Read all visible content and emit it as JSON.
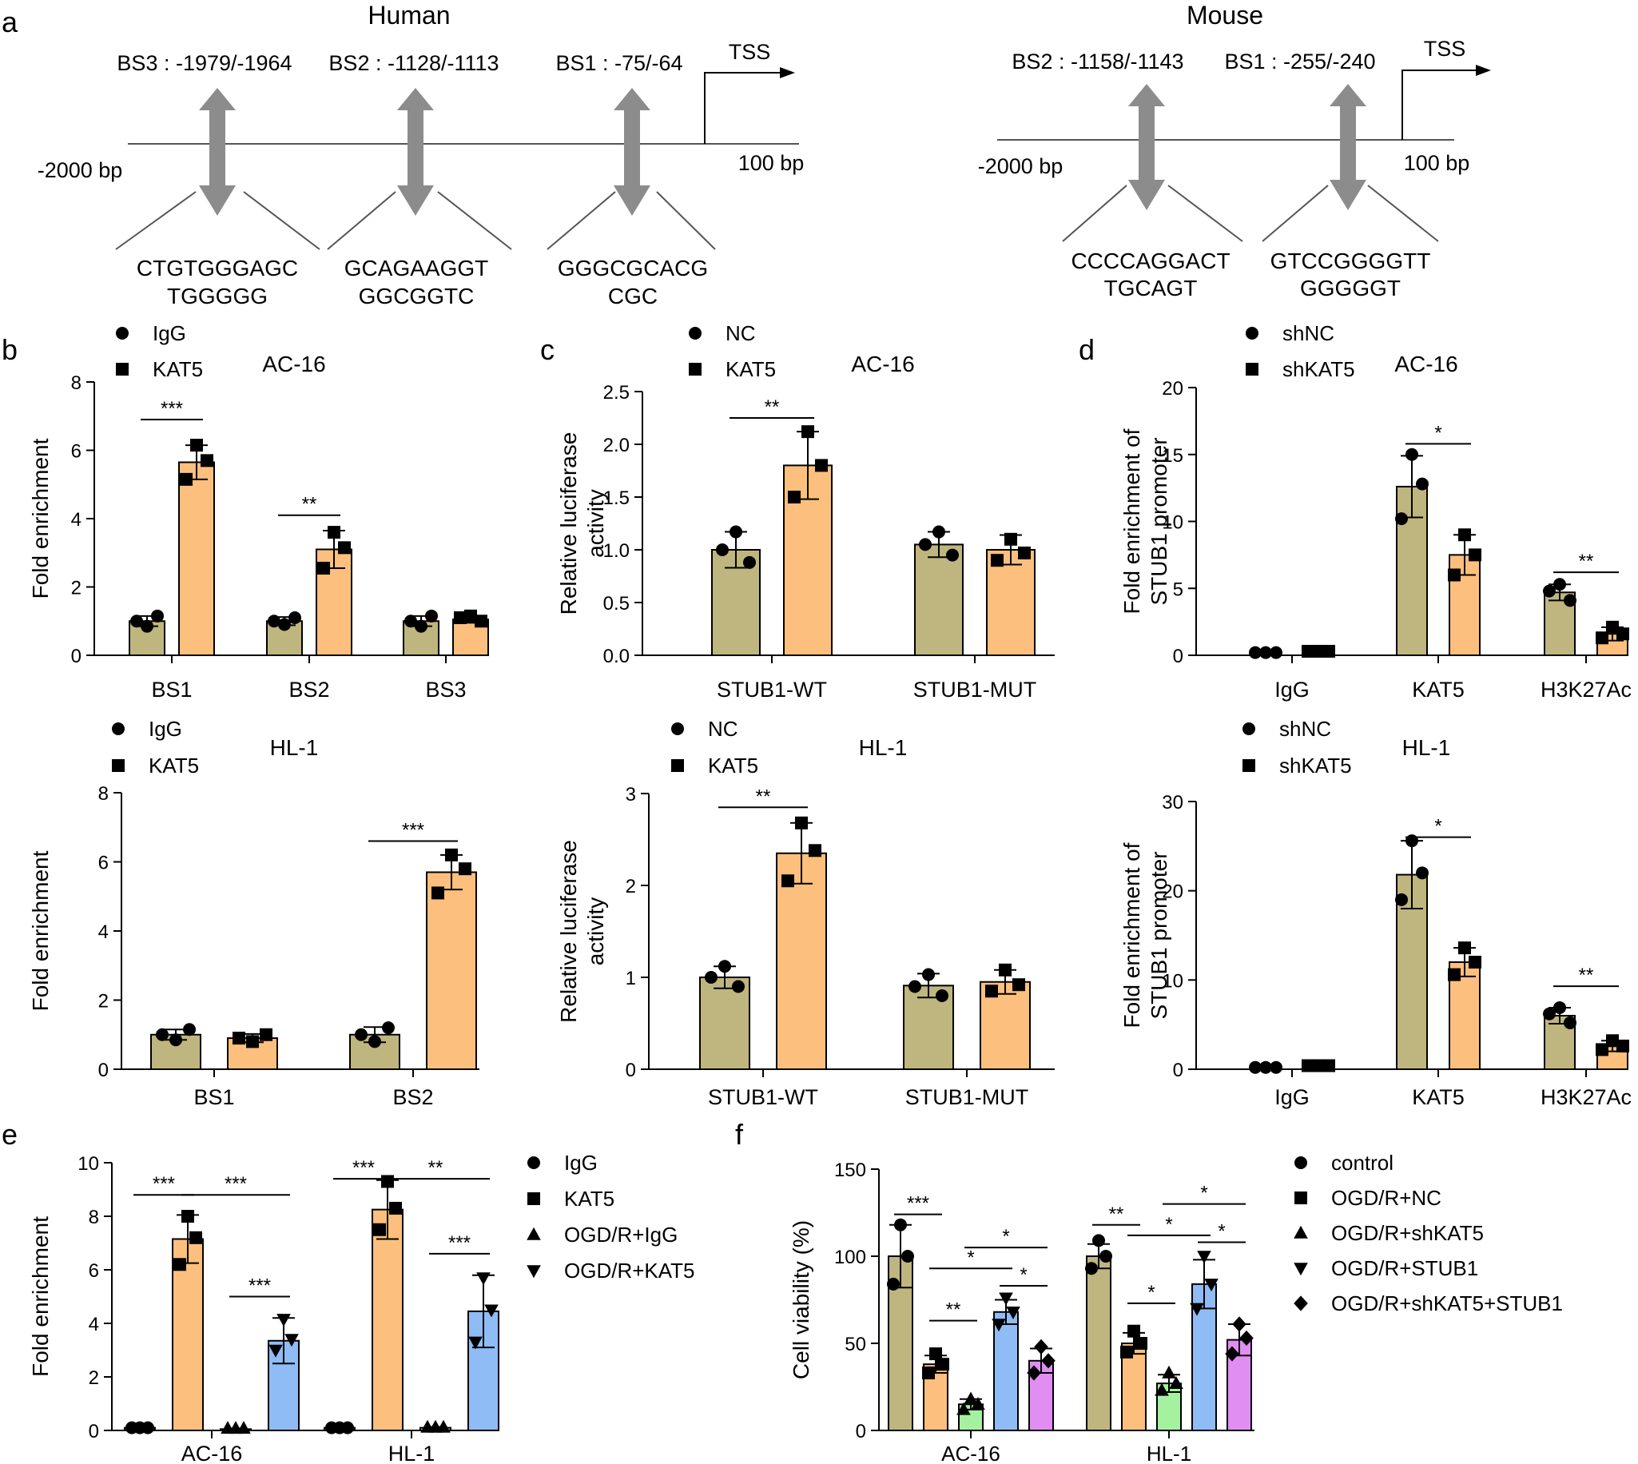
{
  "panel_labels": {
    "a": "a",
    "b": "b",
    "c": "c",
    "d": "d",
    "e": "e",
    "f": "f"
  },
  "colors": {
    "olive": "#bfb67f",
    "orange": "#fdbf7d",
    "blue": "#8fbcf5",
    "green": "#a4f2a0",
    "purple": "#e08ef2",
    "gray": "#8c8c8c",
    "line": "#555555"
  },
  "diagrams": [
    {
      "title": "Human",
      "start": "-2000 bp",
      "end": "100 bp",
      "tss": "TSS",
      "sites": [
        {
          "label": "BS3 : -1979/-1964",
          "seq1": "CTGTGGGAGC",
          "seq2": "TGGGGG"
        },
        {
          "label": "BS2 : -1128/-1113",
          "seq1": "GCAGAAGGT",
          "seq2": "GGCGGTC"
        },
        {
          "label": "BS1 : -75/-64",
          "seq1": "GGGCGCACG",
          "seq2": "CGC"
        }
      ]
    },
    {
      "title": "Mouse",
      "start": "-2000 bp",
      "end": "100 bp",
      "tss": "TSS",
      "sites": [
        {
          "label": "BS2 : -1158/-1143",
          "seq1": "CCCCAGGACT",
          "seq2": "TGCAGT"
        },
        {
          "label": "BS1 : -255/-240",
          "seq1": "GTCCGGGGTT",
          "seq2": "GGGGGT"
        }
      ]
    }
  ],
  "chart_data": [
    {
      "id": "b1",
      "type": "bar",
      "title": "AC-16",
      "ylabel": "Fold enrichment",
      "ylim": [
        0,
        8
      ],
      "yticks": [
        "0",
        "2",
        "4",
        "6",
        "8"
      ],
      "categories": [
        "BS1",
        "BS2",
        "BS3"
      ],
      "legend": [
        {
          "name": "IgG",
          "marker": "circle"
        },
        {
          "name": "KAT5",
          "marker": "square"
        }
      ],
      "series": [
        {
          "name": "IgG",
          "values": [
            1.0,
            1.0,
            1.0
          ],
          "err": [
            0.15,
            0.12,
            0.15
          ],
          "points": [
            [
              0.85,
              1.15,
              1.0
            ],
            [
              0.9,
              1.1,
              1.0
            ],
            [
              0.85,
              1.15,
              1.0
            ]
          ]
        },
        {
          "name": "KAT5",
          "values": [
            5.65,
            3.1,
            1.05
          ],
          "err": [
            0.5,
            0.55,
            0.1
          ],
          "points": [
            [
              6.15,
              5.7,
              5.15
            ],
            [
              3.6,
              3.15,
              2.55
            ],
            [
              1.15,
              1.0,
              1.1
            ]
          ]
        }
      ],
      "sig": [
        {
          "label": "***",
          "from": [
            0,
            0
          ],
          "to": [
            0,
            1
          ],
          "y": 6.9
        },
        {
          "label": "**",
          "from": [
            1,
            0
          ],
          "to": [
            1,
            1
          ],
          "y": 4.1
        }
      ]
    },
    {
      "id": "c1",
      "type": "bar",
      "title": "AC-16",
      "ylabel": "Relative luciferase activity",
      "ylim": [
        0,
        2.5
      ],
      "yticks": [
        "0.0",
        "0.5",
        "1.0",
        "1.5",
        "2.0",
        "2.5"
      ],
      "categories": [
        "STUB1-WT",
        "STUB1-MUT"
      ],
      "legend": [
        {
          "name": "NC",
          "marker": "circle"
        },
        {
          "name": "KAT5",
          "marker": "square"
        }
      ],
      "series": [
        {
          "name": "NC",
          "values": [
            1.0,
            1.05
          ],
          "err": [
            0.17,
            0.12
          ],
          "points": [
            [
              1.17,
              0.88,
              1.0
            ],
            [
              1.17,
              0.95,
              1.05
            ]
          ]
        },
        {
          "name": "KAT5",
          "values": [
            1.8,
            1.0
          ],
          "err": [
            0.32,
            0.14
          ],
          "points": [
            [
              2.12,
              1.8,
              1.5
            ],
            [
              1.1,
              0.97,
              0.9
            ]
          ]
        }
      ],
      "sig": [
        {
          "label": "**",
          "from": [
            0,
            0
          ],
          "to": [
            0,
            1
          ],
          "y": 2.25
        }
      ]
    },
    {
      "id": "d1",
      "type": "bar",
      "title": "AC-16",
      "ylabel": "Fold enrichment of STUB1 promoter",
      "ylim": [
        0,
        20
      ],
      "yticks": [
        "0",
        "5",
        "10",
        "15",
        "20"
      ],
      "categories": [
        "IgG",
        "KAT5",
        "H3K27Ac"
      ],
      "legend": [
        {
          "name": "shNC",
          "marker": "circle"
        },
        {
          "name": "shKAT5",
          "marker": "square"
        }
      ],
      "series": [
        {
          "name": "shNC",
          "values": [
            0.2,
            12.6,
            4.7
          ],
          "err": [
            0.1,
            2.3,
            0.6
          ],
          "points": [
            [
              0.2,
              0.2,
              0.2
            ],
            [
              15.0,
              12.8,
              10.2
            ],
            [
              5.3,
              4.1,
              4.8
            ]
          ]
        },
        {
          "name": "shKAT5",
          "values": [
            0.3,
            7.5,
            1.6
          ],
          "err": [
            0.05,
            1.5,
            0.5
          ],
          "points": [
            [
              0.3,
              0.3,
              0.3
            ],
            [
              9.0,
              7.5,
              6.0
            ],
            [
              2.1,
              1.6,
              1.3
            ]
          ]
        }
      ],
      "sig": [
        {
          "label": "*",
          "from": [
            1,
            0
          ],
          "to": [
            1,
            1
          ],
          "y": 15.8
        },
        {
          "label": "**",
          "from": [
            2,
            0
          ],
          "to": [
            2,
            1
          ],
          "y": 6.2
        }
      ]
    },
    {
      "id": "b2",
      "type": "bar",
      "title": "HL-1",
      "ylabel": "Fold enrichment",
      "ylim": [
        0,
        8
      ],
      "yticks": [
        "0",
        "2",
        "4",
        "6",
        "8"
      ],
      "categories": [
        "BS1",
        "BS2"
      ],
      "legend": [
        {
          "name": "IgG",
          "marker": "circle"
        },
        {
          "name": "KAT5",
          "marker": "square"
        }
      ],
      "series": [
        {
          "name": "IgG",
          "values": [
            1.0,
            1.0
          ],
          "err": [
            0.15,
            0.22
          ],
          "points": [
            [
              0.85,
              1.15,
              1.0
            ],
            [
              0.8,
              1.2,
              1.0
            ]
          ]
        },
        {
          "name": "KAT5",
          "values": [
            0.9,
            5.7
          ],
          "err": [
            0.12,
            0.5
          ],
          "points": [
            [
              0.8,
              1.0,
              0.9
            ],
            [
              6.2,
              5.8,
              5.1
            ]
          ]
        }
      ],
      "sig": [
        {
          "label": "***",
          "from": [
            1,
            0
          ],
          "to": [
            1,
            1
          ],
          "y": 6.6
        }
      ]
    },
    {
      "id": "c2",
      "type": "bar",
      "title": "HL-1",
      "ylabel": "Relative luciferase activity",
      "ylim": [
        0,
        3
      ],
      "yticks": [
        "0",
        "1",
        "2",
        "3"
      ],
      "categories": [
        "STUB1-WT",
        "STUB1-MUT"
      ],
      "legend": [
        {
          "name": "NC",
          "marker": "circle"
        },
        {
          "name": "KAT5",
          "marker": "square"
        }
      ],
      "series": [
        {
          "name": "NC",
          "values": [
            1.0,
            0.91
          ],
          "err": [
            0.12,
            0.13
          ],
          "points": [
            [
              1.12,
              0.9,
              1.0
            ],
            [
              1.03,
              0.8,
              0.9
            ]
          ]
        },
        {
          "name": "KAT5",
          "values": [
            2.35,
            0.95
          ],
          "err": [
            0.33,
            0.13
          ],
          "points": [
            [
              2.68,
              2.38,
              2.05
            ],
            [
              1.08,
              0.92,
              0.85
            ]
          ]
        }
      ],
      "sig": [
        {
          "label": "**",
          "from": [
            0,
            0
          ],
          "to": [
            0,
            1
          ],
          "y": 2.85
        }
      ]
    },
    {
      "id": "d2",
      "type": "bar",
      "title": "HL-1",
      "ylabel": "Fold enrichment of STUB1 promoter",
      "ylim": [
        0,
        30
      ],
      "yticks": [
        "0",
        "10",
        "20",
        "30"
      ],
      "categories": [
        "IgG",
        "KAT5",
        "H3K27Ac"
      ],
      "legend": [
        {
          "name": "shNC",
          "marker": "circle"
        },
        {
          "name": "shKAT5",
          "marker": "square"
        }
      ],
      "series": [
        {
          "name": "shNC",
          "values": [
            0.2,
            21.8,
            6.0
          ],
          "err": [
            0.1,
            3.8,
            0.9
          ],
          "points": [
            [
              0.2,
              0.2,
              0.2
            ],
            [
              25.6,
              22.0,
              19.0
            ],
            [
              6.9,
              5.2,
              6.2
            ]
          ]
        },
        {
          "name": "shKAT5",
          "values": [
            0.4,
            12.0,
            2.6
          ],
          "err": [
            0.05,
            1.6,
            0.6
          ],
          "points": [
            [
              0.4,
              0.4,
              0.4
            ],
            [
              13.6,
              12.0,
              10.6
            ],
            [
              3.2,
              2.6,
              2.2
            ]
          ]
        }
      ],
      "sig": [
        {
          "label": "*",
          "from": [
            1,
            0
          ],
          "to": [
            1,
            1
          ],
          "y": 26.0
        },
        {
          "label": "**",
          "from": [
            2,
            0
          ],
          "to": [
            2,
            1
          ],
          "y": 9.3
        }
      ]
    },
    {
      "id": "e",
      "type": "bar",
      "title": "",
      "ylabel": "Fold enrichment",
      "ylim": [
        0,
        10
      ],
      "yticks": [
        "0",
        "2",
        "4",
        "6",
        "8",
        "10"
      ],
      "categories": [
        "AC-16",
        "HL-1"
      ],
      "legend": [
        {
          "name": "IgG",
          "marker": "circle"
        },
        {
          "name": "KAT5",
          "marker": "square"
        },
        {
          "name": "OGD/R+IgG",
          "marker": "triangle"
        },
        {
          "name": "OGD/R+KAT5",
          "marker": "triangle-down"
        }
      ],
      "series": [
        {
          "name": "IgG",
          "values": [
            0.1,
            0.1
          ],
          "err": [
            0.03,
            0.03
          ],
          "points": [
            [
              0.1,
              0.1,
              0.1
            ],
            [
              0.1,
              0.1,
              0.1
            ]
          ]
        },
        {
          "name": "KAT5",
          "values": [
            7.15,
            8.25
          ],
          "err": [
            0.9,
            1.1
          ],
          "points": [
            [
              8.0,
              7.2,
              6.2
            ],
            [
              9.3,
              8.3,
              7.5
            ]
          ]
        },
        {
          "name": "OGD/R+IgG",
          "values": [
            0.05,
            0.1
          ],
          "err": [
            0.02,
            0.03
          ],
          "points": [
            [
              0.08,
              0.08,
              0.08
            ],
            [
              0.12,
              0.12,
              0.12
            ]
          ]
        },
        {
          "name": "OGD/R+KAT5",
          "values": [
            3.35,
            4.45
          ],
          "err": [
            0.85,
            1.35
          ],
          "points": [
            [
              4.15,
              3.4,
              3.0
            ],
            [
              5.7,
              4.5,
              3.3
            ]
          ]
        }
      ],
      "sig": [
        {
          "label": "***",
          "from": [
            0,
            0
          ],
          "to": [
            0,
            1
          ],
          "y": 8.8
        },
        {
          "label": "***",
          "from": [
            0,
            1
          ],
          "to": [
            0,
            3
          ],
          "y": 8.8
        },
        {
          "label": "***",
          "from": [
            0,
            2
          ],
          "to": [
            0,
            3
          ],
          "y": 5.0
        },
        {
          "label": "***",
          "from": [
            1,
            0
          ],
          "to": [
            1,
            1
          ],
          "y": 9.4
        },
        {
          "label": "**",
          "from": [
            1,
            1
          ],
          "to": [
            1,
            3
          ],
          "y": 9.4
        },
        {
          "label": "***",
          "from": [
            1,
            2
          ],
          "to": [
            1,
            3
          ],
          "y": 6.6
        }
      ]
    },
    {
      "id": "f",
      "type": "bar",
      "title": "",
      "ylabel": "Cell viability (%)",
      "ylim": [
        0,
        150
      ],
      "yticks": [
        "0",
        "50",
        "100",
        "150"
      ],
      "categories": [
        "AC-16",
        "HL-1"
      ],
      "legend": [
        {
          "name": "control",
          "marker": "circle"
        },
        {
          "name": "OGD/R+NC",
          "marker": "square"
        },
        {
          "name": "OGD/R+shKAT5",
          "marker": "triangle"
        },
        {
          "name": "OGD/R+STUB1",
          "marker": "triangle-down"
        },
        {
          "name": "OGD/R+shKAT5+STUB1",
          "marker": "diamond"
        }
      ],
      "series": [
        {
          "name": "control",
          "values": [
            100,
            100
          ],
          "err": [
            18,
            7
          ],
          "points": [
            [
              118,
              100,
              84
            ],
            [
              109,
              100,
              93
            ]
          ]
        },
        {
          "name": "OGD/R+NC",
          "values": [
            38,
            50
          ],
          "err": [
            5,
            6
          ],
          "points": [
            [
              44,
              38,
              33
            ],
            [
              57,
              50,
              45
            ]
          ]
        },
        {
          "name": "OGD/R+shKAT5",
          "values": [
            15,
            27
          ],
          "err": [
            3,
            5
          ],
          "points": [
            [
              18,
              15,
              12
            ],
            [
              33,
              27,
              23
            ]
          ]
        },
        {
          "name": "OGD/R+STUB1",
          "values": [
            68,
            84
          ],
          "err": [
            7,
            14
          ],
          "points": [
            [
              76,
              68,
              61
            ],
            [
              100,
              84,
              70
            ]
          ]
        },
        {
          "name": "OGD/R+shKAT5+STUB1",
          "values": [
            40,
            52
          ],
          "err": [
            7,
            9
          ],
          "points": [
            [
              48,
              40,
              33
            ],
            [
              61,
              53,
              44
            ]
          ]
        }
      ],
      "sig": [
        {
          "label": "***",
          "from": [
            0,
            0
          ],
          "to": [
            0,
            1
          ],
          "y": 124
        },
        {
          "label": "**",
          "from": [
            0,
            1
          ],
          "to": [
            0,
            2
          ],
          "y": 63
        },
        {
          "label": "*",
          "from": [
            0,
            1
          ],
          "to": [
            0,
            3
          ],
          "y": 93
        },
        {
          "label": "*",
          "from": [
            0,
            2
          ],
          "to": [
            0,
            4
          ],
          "y": 105
        },
        {
          "label": "*",
          "from": [
            0,
            3
          ],
          "to": [
            0,
            4
          ],
          "y": 83
        },
        {
          "label": "**",
          "from": [
            1,
            0
          ],
          "to": [
            1,
            1
          ],
          "y": 118
        },
        {
          "label": "*",
          "from": [
            1,
            1
          ],
          "to": [
            1,
            3
          ],
          "y": 112
        },
        {
          "label": "*",
          "from": [
            1,
            3
          ],
          "to": [
            1,
            4
          ],
          "y": 108
        },
        {
          "label": "*",
          "from": [
            1,
            2
          ],
          "to": [
            1,
            1
          ],
          "y": 73
        },
        {
          "label": "*",
          "from": [
            1,
            2
          ],
          "to": [
            1,
            4
          ],
          "y": 130
        }
      ]
    }
  ]
}
